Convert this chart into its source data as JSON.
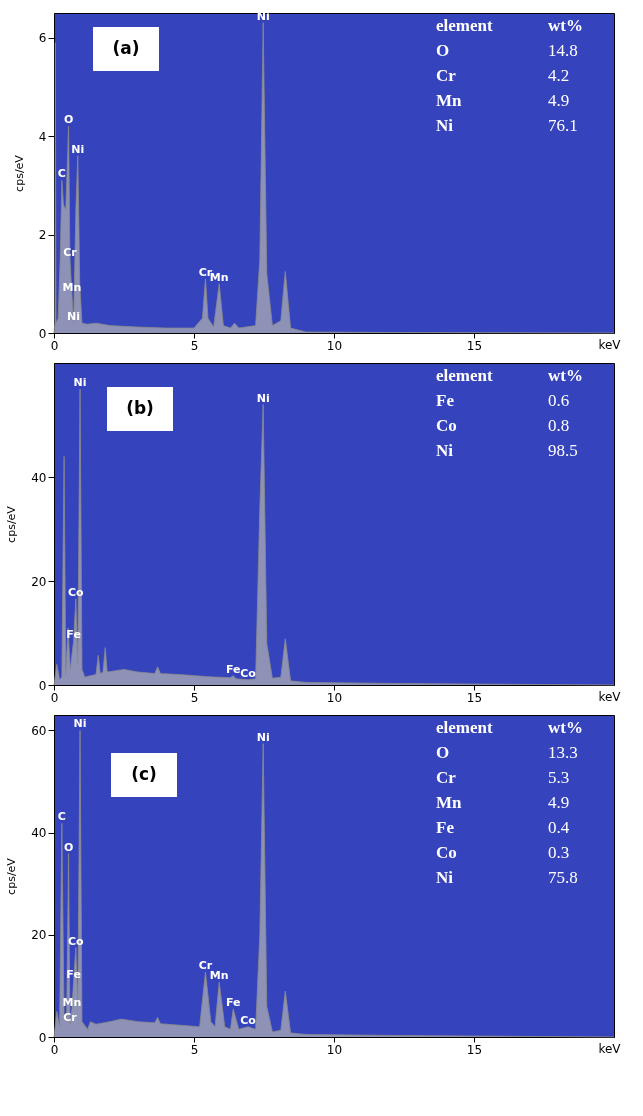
{
  "chart_data": [
    {
      "type": "area",
      "xlabel": "keV",
      "ylabel": "cps/eV",
      "xlim": [
        0,
        20
      ],
      "ylim": [
        0,
        6.5
      ],
      "xticks": [
        0,
        5,
        10,
        15
      ],
      "yticks": [
        0,
        2,
        4,
        6
      ],
      "color": "#b4b4b4",
      "x": [
        0,
        0.03,
        0.05,
        0.07,
        0.15,
        0.22,
        0.28,
        0.34,
        0.42,
        0.48,
        0.52,
        0.57,
        0.64,
        0.7,
        0.78,
        0.85,
        0.92,
        1.0,
        1.2,
        1.5,
        2,
        3,
        4,
        5,
        5.3,
        5.41,
        5.5,
        5.7,
        5.9,
        6.05,
        6.3,
        6.45,
        6.6,
        7.2,
        7.35,
        7.47,
        7.6,
        7.8,
        8.1,
        8.26,
        8.45,
        9,
        12,
        20
      ],
      "values": [
        0,
        0.2,
        5.9,
        0.2,
        0.3,
        1.5,
        3.1,
        2.6,
        2.5,
        3.5,
        4.2,
        1.5,
        0.8,
        0.2,
        2.5,
        3.6,
        1.0,
        0.2,
        0.18,
        0.2,
        0.15,
        0.12,
        0.1,
        0.1,
        0.3,
        1.1,
        0.3,
        0.12,
        1.0,
        0.15,
        0.1,
        0.2,
        0.1,
        0.15,
        1.5,
        6.3,
        1.2,
        0.15,
        0.25,
        1.25,
        0.1,
        0.02,
        0.01,
        0
      ],
      "annotations": [
        "(a)",
        "element",
        "wt%",
        "O",
        "14.8",
        "Cr",
        "4.2",
        "Mn",
        "4.9",
        "Ni",
        "76.1",
        {
          "text": "Ni",
          "x": 7.47,
          "y": 6.3
        },
        {
          "text": "O",
          "x": 0.52,
          "y": 4.2
        },
        {
          "text": "Ni",
          "x": 0.85,
          "y": 3.6
        },
        {
          "text": "C",
          "x": 0.28,
          "y": 3.1
        },
        {
          "text": "Cr",
          "x": 0.57,
          "y": 1.5
        },
        {
          "text": "Mn",
          "x": 0.64,
          "y": 0.8
        },
        {
          "text": "Ni",
          "x": 0.7,
          "y": 0.2
        },
        {
          "text": "Cr",
          "x": 5.41,
          "y": 1.1
        },
        {
          "text": "Mn",
          "x": 5.9,
          "y": 1.0
        }
      ]
    },
    {
      "type": "area",
      "xlabel": "keV",
      "ylabel": "cps/eV",
      "xlim": [
        0,
        20
      ],
      "ylim": [
        0,
        62
      ],
      "xticks": [
        0,
        5,
        10,
        15
      ],
      "yticks": [
        0,
        20,
        40
      ],
      "color": "#b4b4b4",
      "x": [
        0,
        0.1,
        0.2,
        0.28,
        0.36,
        0.42,
        0.5,
        0.58,
        0.7,
        0.78,
        0.85,
        0.93,
        1.0,
        1.1,
        1.3,
        1.5,
        1.58,
        1.65,
        1.75,
        1.83,
        1.9,
        2.5,
        3,
        3.6,
        3.7,
        3.8,
        4.5,
        5.5,
        6.3,
        6.4,
        6.5,
        6.93,
        7.2,
        7.35,
        7.47,
        7.6,
        7.8,
        8.1,
        8.26,
        8.45,
        9,
        12,
        20
      ],
      "values": [
        0,
        4,
        1,
        1.5,
        44,
        2,
        11,
        3,
        8.5,
        16.6,
        4,
        57,
        3,
        1.5,
        1.8,
        2,
        5.7,
        2.2,
        2.5,
        7.2,
        2.5,
        3,
        2.5,
        2.2,
        3.5,
        2.2,
        2,
        1.6,
        1.4,
        1.8,
        1.2,
        1,
        1.2,
        34,
        54,
        8,
        1.3,
        1.5,
        8.9,
        0.8,
        0.5,
        0.3,
        0
      ],
      "annotations": [
        "(b)",
        "element",
        "wt%",
        "Fe",
        "0.6",
        "Co",
        "0.8",
        "Ni",
        "98.5",
        {
          "text": "Ni",
          "x": 0.93,
          "y": 57
        },
        {
          "text": "Ni",
          "x": 7.47,
          "y": 54
        },
        {
          "text": "Co",
          "x": 0.78,
          "y": 16.6
        },
        {
          "text": "Fe",
          "x": 0.7,
          "y": 8.5
        },
        {
          "text": "Fe",
          "x": 6.4,
          "y": 1.8
        },
        {
          "text": "Co",
          "x": 6.93,
          "y": 1
        }
      ]
    },
    {
      "type": "area",
      "xlabel": "keV",
      "ylabel": "cps/eV",
      "xlim": [
        0,
        20
      ],
      "ylim": [
        0,
        63
      ],
      "xticks": [
        0,
        5,
        10,
        15
      ],
      "yticks": [
        0,
        20,
        40,
        60
      ],
      "color": "#b4b4b4",
      "x": [
        0,
        0.1,
        0.2,
        0.28,
        0.36,
        0.45,
        0.52,
        0.57,
        0.64,
        0.7,
        0.78,
        0.85,
        0.93,
        1.0,
        1.2,
        1.3,
        1.5,
        2,
        2.4,
        3,
        3.6,
        3.7,
        3.8,
        4.5,
        5.2,
        5.41,
        5.6,
        5.75,
        5.9,
        6.1,
        6.3,
        6.4,
        6.6,
        6.93,
        7.2,
        7.35,
        7.47,
        7.6,
        7.8,
        8.1,
        8.26,
        8.45,
        9,
        12,
        20
      ],
      "values": [
        0,
        5,
        2,
        41.8,
        4,
        3,
        35.9,
        2.5,
        5.5,
        11,
        17.5,
        6,
        60,
        3,
        1.5,
        3,
        2.5,
        3,
        3.5,
        3,
        2.8,
        3.8,
        2.6,
        2.3,
        2,
        12.7,
        3,
        2,
        10.7,
        2,
        1.5,
        5.5,
        1.5,
        2,
        1.5,
        20,
        57.4,
        6,
        1,
        1.3,
        9,
        0.8,
        0.5,
        0.3,
        0
      ],
      "annotations": [
        "(c)",
        "element",
        "wt%",
        "O",
        "13.3",
        "Cr",
        "5.3",
        "Mn",
        "4.9",
        "Fe",
        "0.4",
        "Co",
        "0.3",
        "Ni",
        "75.8",
        {
          "text": "Ni",
          "x": 0.93,
          "y": 60
        },
        {
          "text": "Ni",
          "x": 7.47,
          "y": 57.4
        },
        {
          "text": "C",
          "x": 0.28,
          "y": 41.8
        },
        {
          "text": "O",
          "x": 0.52,
          "y": 35.9
        },
        {
          "text": "Co",
          "x": 0.78,
          "y": 17.5
        },
        {
          "text": "Fe",
          "x": 0.7,
          "y": 11
        },
        {
          "text": "Mn",
          "x": 0.64,
          "y": 5.5
        },
        {
          "text": "Cr",
          "x": 0.57,
          "y": 2.5
        },
        {
          "text": "Cr",
          "x": 5.41,
          "y": 12.7
        },
        {
          "text": "Mn",
          "x": 5.9,
          "y": 10.7
        },
        {
          "text": "Fe",
          "x": 6.4,
          "y": 5.5
        },
        {
          "text": "Co",
          "x": 6.93,
          "y": 2
        }
      ]
    }
  ]
}
